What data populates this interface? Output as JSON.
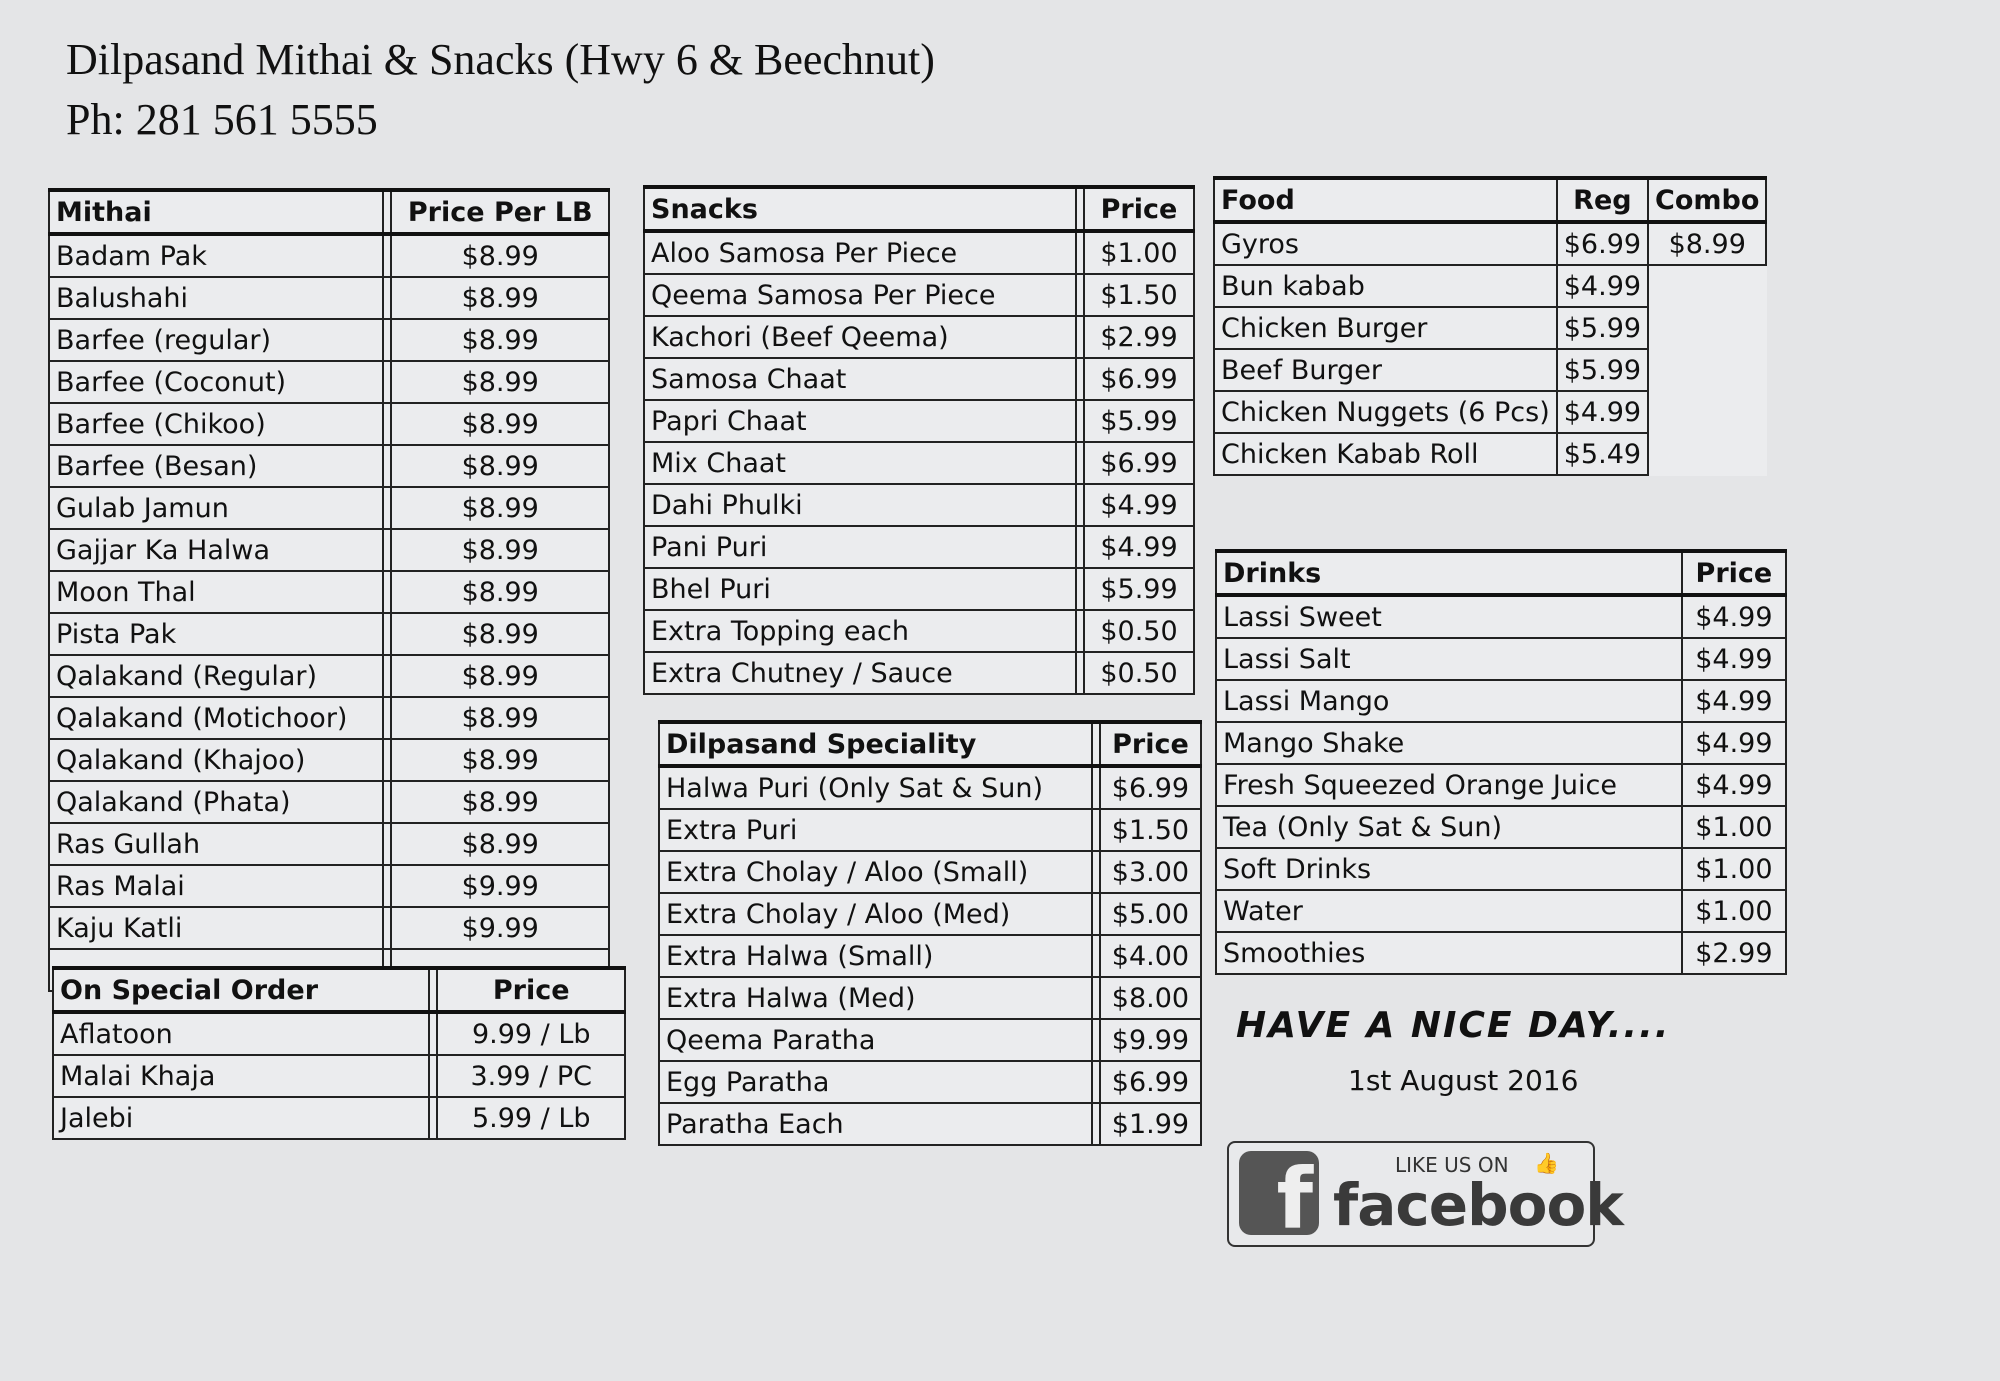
{
  "header": {
    "title": "Dilpasand Mithai & Snacks (Hwy 6 & Beechnut)",
    "phone": "Ph: 281 561 5555"
  },
  "tables": {
    "mithai": {
      "headers": [
        "Mithai",
        "Price Per LB"
      ],
      "rows": [
        [
          "Badam Pak",
          "$8.99"
        ],
        [
          "Balushahi",
          "$8.99"
        ],
        [
          "Barfee (regular)",
          "$8.99"
        ],
        [
          "Barfee (Coconut)",
          "$8.99"
        ],
        [
          "Barfee (Chikoo)",
          "$8.99"
        ],
        [
          "Barfee (Besan)",
          "$8.99"
        ],
        [
          "Gulab Jamun",
          "$8.99"
        ],
        [
          "Gajjar Ka Halwa",
          "$8.99"
        ],
        [
          "Moon Thal",
          "$8.99"
        ],
        [
          "Pista Pak",
          "$8.99"
        ],
        [
          "Qalakand (Regular)",
          "$8.99"
        ],
        [
          "Qalakand (Motichoor)",
          "$8.99"
        ],
        [
          "Qalakand (Khajoo)",
          "$8.99"
        ],
        [
          "Qalakand (Phata)",
          "$8.99"
        ],
        [
          "Ras Gullah",
          "$8.99"
        ],
        [
          "Ras Malai",
          "$9.99"
        ],
        [
          "Kaju Katli",
          "$9.99"
        ],
        [
          "",
          ""
        ]
      ]
    },
    "special_order": {
      "headers": [
        "On Special Order",
        "Price"
      ],
      "rows": [
        [
          "Aflatoon",
          "9.99 / Lb"
        ],
        [
          "Malai Khaja",
          "3.99 / PC"
        ],
        [
          "Jalebi",
          "5.99 / Lb"
        ]
      ]
    },
    "snacks": {
      "headers": [
        "Snacks",
        "Price"
      ],
      "rows": [
        [
          "Aloo Samosa Per Piece",
          "$1.00"
        ],
        [
          "Qeema Samosa Per Piece",
          "$1.50"
        ],
        [
          "Kachori (Beef Qeema)",
          "$2.99"
        ],
        [
          "Samosa Chaat",
          "$6.99"
        ],
        [
          "Papri Chaat",
          "$5.99"
        ],
        [
          "Mix Chaat",
          "$6.99"
        ],
        [
          "Dahi Phulki",
          "$4.99"
        ],
        [
          "Pani Puri",
          "$4.99"
        ],
        [
          "Bhel Puri",
          "$5.99"
        ],
        [
          "Extra Topping each",
          "$0.50"
        ],
        [
          "Extra Chutney / Sauce",
          "$0.50"
        ]
      ]
    },
    "speciality": {
      "headers": [
        "Dilpasand Speciality",
        "Price"
      ],
      "rows": [
        [
          "Halwa Puri (Only Sat & Sun)",
          "$6.99"
        ],
        [
          "Extra Puri",
          "$1.50"
        ],
        [
          "Extra Cholay / Aloo (Small)",
          "$3.00"
        ],
        [
          "Extra Cholay / Aloo (Med)",
          "$5.00"
        ],
        [
          "Extra Halwa (Small)",
          "$4.00"
        ],
        [
          "Extra Halwa (Med)",
          "$8.00"
        ],
        [
          "Qeema Paratha",
          "$9.99"
        ],
        [
          "Egg Paratha",
          "$6.99"
        ],
        [
          "Paratha Each",
          "$1.99"
        ]
      ]
    },
    "food": {
      "headers": [
        "Food",
        "Reg",
        "Combo"
      ],
      "rows": [
        [
          "Gyros",
          "$6.99",
          "$8.99"
        ],
        [
          "Bun kabab",
          "$4.99"
        ],
        [
          "Chicken Burger",
          "$5.99"
        ],
        [
          "Beef Burger",
          "$5.99"
        ],
        [
          "Chicken Nuggets (6 Pcs)",
          "$4.99"
        ],
        [
          "Chicken Kabab Roll",
          "$5.49"
        ]
      ]
    },
    "drinks": {
      "headers": [
        "Drinks",
        "Price"
      ],
      "rows": [
        [
          "Lassi Sweet",
          "$4.99"
        ],
        [
          "Lassi Salt",
          "$4.99"
        ],
        [
          "Lassi Mango",
          "$4.99"
        ],
        [
          "Mango Shake",
          "$4.99"
        ],
        [
          "Fresh Squeezed Orange Juice",
          "$4.99"
        ],
        [
          "Tea (Only Sat & Sun)",
          "$1.00"
        ],
        [
          "Soft Drinks",
          "$1.00"
        ],
        [
          "Water",
          "$1.00"
        ],
        [
          "Smoothies",
          "$2.99"
        ]
      ]
    }
  },
  "footer": {
    "greeting": "HAVE A NICE DAY....",
    "date": "1st August 2016",
    "facebook": {
      "like_text": "LIKE US ON",
      "brand": "facebook",
      "icon": "facebook-logo-icon",
      "thumb_icon": "thumbs-up-icon"
    }
  }
}
